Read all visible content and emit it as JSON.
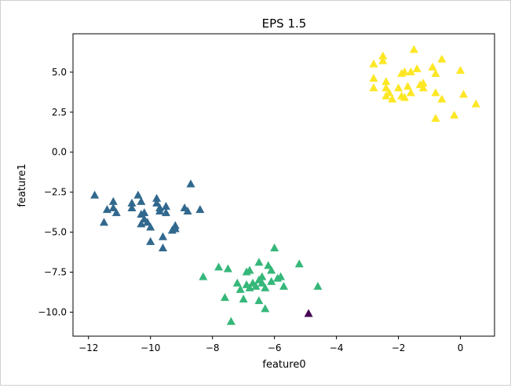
{
  "chart_data": {
    "type": "scatter",
    "title": "EPS 1.5",
    "xlabel": "feature0",
    "ylabel": "feature1",
    "xlim": [
      -12.5,
      1.1
    ],
    "ylim": [
      -11.5,
      7.4
    ],
    "xticks": [
      -12,
      -10,
      -8,
      -6,
      -4,
      -2,
      0
    ],
    "xtick_labels": [
      "−12",
      "−10",
      "−8",
      "−6",
      "−4",
      "−2",
      "0"
    ],
    "yticks": [
      -10.0,
      -7.5,
      -5.0,
      -2.5,
      0.0,
      2.5,
      5.0
    ],
    "ytick_labels": [
      "−10.0",
      "−7.5",
      "−5.0",
      "−2.5",
      "0.0",
      "2.5",
      "5.0"
    ],
    "grid": false,
    "marker": "triangle",
    "series": [
      {
        "color": "#440154",
        "points": [
          [
            -4.9,
            -10.1
          ]
        ]
      },
      {
        "color": "#31688e",
        "points": [
          [
            -11.8,
            -2.7
          ],
          [
            -11.5,
            -4.4
          ],
          [
            -11.4,
            -3.6
          ],
          [
            -11.2,
            -3.1
          ],
          [
            -11.2,
            -3.5
          ],
          [
            -11.1,
            -3.8
          ],
          [
            -10.6,
            -3.5
          ],
          [
            -10.6,
            -3.2
          ],
          [
            -10.4,
            -2.7
          ],
          [
            -10.3,
            -3.1
          ],
          [
            -10.3,
            -3.9
          ],
          [
            -10.3,
            -4.5
          ],
          [
            -10.2,
            -3.8
          ],
          [
            -10.2,
            -4.2
          ],
          [
            -10.1,
            -4.4
          ],
          [
            -10.0,
            -4.7
          ],
          [
            -10.0,
            -5.6
          ],
          [
            -9.8,
            -2.9
          ],
          [
            -9.8,
            -3.2
          ],
          [
            -9.7,
            -3.7
          ],
          [
            -9.7,
            -3.5
          ],
          [
            -9.6,
            -5.3
          ],
          [
            -9.6,
            -6.0
          ],
          [
            -9.5,
            -3.4
          ],
          [
            -9.5,
            -3.8
          ],
          [
            -9.3,
            -4.9
          ],
          [
            -9.2,
            -4.6
          ],
          [
            -9.2,
            -4.8
          ],
          [
            -8.9,
            -3.5
          ],
          [
            -8.8,
            -3.7
          ],
          [
            -8.7,
            -2.0
          ],
          [
            -8.4,
            -3.6
          ]
        ]
      },
      {
        "color": "#35b779",
        "points": [
          [
            -8.3,
            -7.8
          ],
          [
            -7.8,
            -7.2
          ],
          [
            -7.6,
            -9.1
          ],
          [
            -7.5,
            -7.3
          ],
          [
            -7.4,
            -10.6
          ],
          [
            -7.2,
            -8.2
          ],
          [
            -7.1,
            -8.6
          ],
          [
            -7.0,
            -9.2
          ],
          [
            -6.9,
            -8.3
          ],
          [
            -6.9,
            -7.5
          ],
          [
            -6.8,
            -7.4
          ],
          [
            -6.8,
            -8.5
          ],
          [
            -6.7,
            -8.2
          ],
          [
            -6.6,
            -8.4
          ],
          [
            -6.5,
            -6.9
          ],
          [
            -6.5,
            -8.0
          ],
          [
            -6.5,
            -9.3
          ],
          [
            -6.4,
            -7.8
          ],
          [
            -6.4,
            -8.2
          ],
          [
            -6.3,
            -8.5
          ],
          [
            -6.3,
            -9.8
          ],
          [
            -6.2,
            -7.1
          ],
          [
            -6.1,
            -7.4
          ],
          [
            -6.1,
            -8.1
          ],
          [
            -6.0,
            -6.0
          ],
          [
            -5.9,
            -7.9
          ],
          [
            -5.8,
            -7.8
          ],
          [
            -5.7,
            -8.4
          ],
          [
            -5.2,
            -7.0
          ],
          [
            -4.6,
            -8.4
          ]
        ]
      },
      {
        "color": "#fde725",
        "points": [
          [
            -2.8,
            5.5
          ],
          [
            -2.8,
            4.6
          ],
          [
            -2.8,
            4.0
          ],
          [
            -2.5,
            5.7
          ],
          [
            -2.5,
            6.0
          ],
          [
            -2.4,
            4.4
          ],
          [
            -2.4,
            4.0
          ],
          [
            -2.4,
            3.5
          ],
          [
            -2.3,
            3.7
          ],
          [
            -2.2,
            3.3
          ],
          [
            -2.0,
            4.0
          ],
          [
            -1.9,
            4.9
          ],
          [
            -1.9,
            3.5
          ],
          [
            -1.8,
            5.0
          ],
          [
            -1.8,
            3.4
          ],
          [
            -1.7,
            4.1
          ],
          [
            -1.6,
            5.0
          ],
          [
            -1.6,
            3.7
          ],
          [
            -1.5,
            6.4
          ],
          [
            -1.4,
            5.2
          ],
          [
            -1.3,
            4.2
          ],
          [
            -1.2,
            4.0
          ],
          [
            -1.2,
            4.3
          ],
          [
            -0.9,
            5.3
          ],
          [
            -0.8,
            4.9
          ],
          [
            -0.8,
            3.7
          ],
          [
            -0.8,
            2.1
          ],
          [
            -0.6,
            5.8
          ],
          [
            -0.6,
            3.3
          ],
          [
            -0.2,
            2.3
          ],
          [
            0.0,
            5.1
          ],
          [
            0.1,
            3.6
          ],
          [
            0.5,
            3.0
          ]
        ]
      }
    ]
  }
}
